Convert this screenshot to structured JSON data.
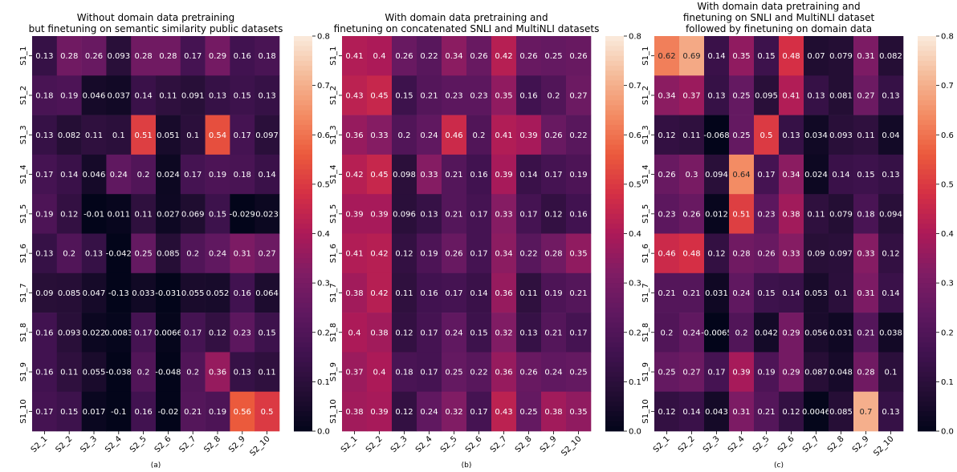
{
  "chart_data": [
    {
      "type": "heatmap",
      "title_lines": [
        "Without domain data pretraining",
        "but finetuning on semantic similarity public datasets"
      ],
      "caption": "(a)",
      "x_categories": [
        "S2_1",
        "S2_2",
        "S2_3",
        "S2_4",
        "S2_5",
        "S2_6",
        "S2_7",
        "S2_8",
        "S2_9",
        "S2_10"
      ],
      "y_categories": [
        "S1_1",
        "S1_2",
        "S1_3",
        "S1_4",
        "S1_5",
        "S1_6",
        "S1_7",
        "S1_8",
        "S1_9",
        "S1_10"
      ],
      "values": [
        [
          0.13,
          0.28,
          0.26,
          0.093,
          0.28,
          0.28,
          0.17,
          0.29,
          0.16,
          0.18
        ],
        [
          0.18,
          0.19,
          0.046,
          0.037,
          0.14,
          0.11,
          0.091,
          0.13,
          0.15,
          0.13
        ],
        [
          0.13,
          0.082,
          0.11,
          0.1,
          0.51,
          0.051,
          0.1,
          0.54,
          0.17,
          0.097
        ],
        [
          0.17,
          0.14,
          0.046,
          0.24,
          0.2,
          0.024,
          0.17,
          0.19,
          0.18,
          0.14
        ],
        [
          0.19,
          0.12,
          -0.01,
          0.011,
          0.11,
          0.027,
          0.069,
          0.15,
          -0.029,
          0.023
        ],
        [
          0.13,
          0.2,
          0.13,
          -0.042,
          0.25,
          0.085,
          0.2,
          0.24,
          0.31,
          0.27
        ],
        [
          0.09,
          0.085,
          0.047,
          -0.13,
          0.033,
          -0.031,
          0.055,
          0.052,
          0.16,
          0.064
        ],
        [
          0.16,
          0.093,
          0.022,
          0.0083,
          0.17,
          0.0066,
          0.17,
          0.12,
          0.23,
          0.15
        ],
        [
          0.16,
          0.11,
          0.055,
          -0.038,
          0.2,
          -0.048,
          0.2,
          0.36,
          0.13,
          0.11
        ],
        [
          0.17,
          0.15,
          0.017,
          -0.1,
          0.16,
          -0.02,
          0.21,
          0.19,
          0.56,
          0.5
        ]
      ],
      "colorbar": {
        "range": [
          0.0,
          0.8
        ],
        "ticks": [
          "0.0",
          "0.1",
          "0.2",
          "0.3",
          "0.4",
          "0.5",
          "0.6",
          "0.7",
          "0.8"
        ]
      }
    },
    {
      "type": "heatmap",
      "title_lines": [
        "With domain data pretraining and",
        "finetuning on concatenated SNLI and MultiNLI datasets"
      ],
      "caption": "(b)",
      "x_categories": [
        "S2_1",
        "S2_2",
        "S2_3",
        "S2_4",
        "S2_5",
        "S2_6",
        "S2_7",
        "S2_8",
        "S2_9",
        "S2_10"
      ],
      "y_categories": [
        "S1_1",
        "S1_2",
        "S1_3",
        "S1_4",
        "S1_5",
        "S1_6",
        "S1_7",
        "S1_8",
        "S1_9",
        "S1_10"
      ],
      "values": [
        [
          0.41,
          0.4,
          0.26,
          0.22,
          0.34,
          0.26,
          0.42,
          0.26,
          0.25,
          0.26
        ],
        [
          0.43,
          0.45,
          0.15,
          0.21,
          0.23,
          0.23,
          0.35,
          0.16,
          0.2,
          0.27
        ],
        [
          0.36,
          0.33,
          0.2,
          0.24,
          0.46,
          0.2,
          0.41,
          0.39,
          0.26,
          0.22
        ],
        [
          0.42,
          0.45,
          0.098,
          0.33,
          0.21,
          0.16,
          0.39,
          0.14,
          0.17,
          0.19
        ],
        [
          0.39,
          0.39,
          0.096,
          0.13,
          0.21,
          0.17,
          0.33,
          0.17,
          0.12,
          0.16
        ],
        [
          0.41,
          0.42,
          0.12,
          0.19,
          0.26,
          0.17,
          0.34,
          0.22,
          0.28,
          0.35
        ],
        [
          0.38,
          0.42,
          0.11,
          0.16,
          0.17,
          0.14,
          0.36,
          0.11,
          0.19,
          0.21
        ],
        [
          0.4,
          0.38,
          0.12,
          0.17,
          0.24,
          0.15,
          0.32,
          0.13,
          0.21,
          0.17
        ],
        [
          0.37,
          0.4,
          0.18,
          0.17,
          0.25,
          0.22,
          0.36,
          0.26,
          0.24,
          0.25
        ],
        [
          0.38,
          0.39,
          0.12,
          0.24,
          0.32,
          0.17,
          0.43,
          0.25,
          0.38,
          0.35
        ]
      ],
      "colorbar": {
        "range": [
          0.0,
          0.8
        ],
        "ticks": [
          "0.0",
          "0.1",
          "0.2",
          "0.3",
          "0.4",
          "0.5",
          "0.6",
          "0.7",
          "0.8"
        ]
      }
    },
    {
      "type": "heatmap",
      "title_lines": [
        "With domain data pretraining and",
        "finetuning on SNLI and MultiNLI dataset",
        "followed by finetuning on domain data"
      ],
      "caption": "(c)",
      "x_categories": [
        "S2_1",
        "S2_2",
        "S2_3",
        "S2_4",
        "S2_5",
        "S2_6",
        "S2_7",
        "S2_8",
        "S2_9",
        "S2_10"
      ],
      "y_categories": [
        "S1_1",
        "S1_2",
        "S1_3",
        "S1_4",
        "S1_5",
        "S1_6",
        "S1_7",
        "S1_8",
        "S1_9",
        "S1_10"
      ],
      "values": [
        [
          0.62,
          0.69,
          0.14,
          0.35,
          0.15,
          0.48,
          0.07,
          0.079,
          0.31,
          0.082
        ],
        [
          0.34,
          0.37,
          0.13,
          0.25,
          0.095,
          0.41,
          0.13,
          0.081,
          0.27,
          0.13
        ],
        [
          0.12,
          0.11,
          -0.068,
          0.25,
          0.5,
          0.13,
          0.034,
          0.093,
          0.11,
          0.04
        ],
        [
          0.26,
          0.3,
          0.094,
          0.64,
          0.17,
          0.34,
          0.024,
          0.14,
          0.15,
          0.13
        ],
        [
          0.23,
          0.26,
          0.012,
          0.51,
          0.23,
          0.38,
          0.11,
          0.079,
          0.18,
          0.094
        ],
        [
          0.46,
          0.48,
          0.12,
          0.28,
          0.26,
          0.33,
          0.09,
          0.097,
          0.33,
          0.12
        ],
        [
          0.21,
          0.21,
          0.031,
          0.24,
          0.15,
          0.14,
          0.053,
          0.1,
          0.31,
          0.14
        ],
        [
          0.2,
          0.24,
          -0.0065,
          0.2,
          0.042,
          0.29,
          0.056,
          0.031,
          0.21,
          0.038
        ],
        [
          0.25,
          0.27,
          0.17,
          0.39,
          0.19,
          0.29,
          0.087,
          0.048,
          0.28,
          0.1
        ],
        [
          0.12,
          0.14,
          0.043,
          0.31,
          0.21,
          0.12,
          0.0046,
          0.085,
          0.7,
          0.13
        ]
      ],
      "colorbar": {
        "range": [
          0.0,
          0.8
        ],
        "ticks": [
          "0.0",
          "0.1",
          "0.2",
          "0.3",
          "0.4",
          "0.5",
          "0.6",
          "0.7",
          "0.8"
        ]
      }
    }
  ]
}
